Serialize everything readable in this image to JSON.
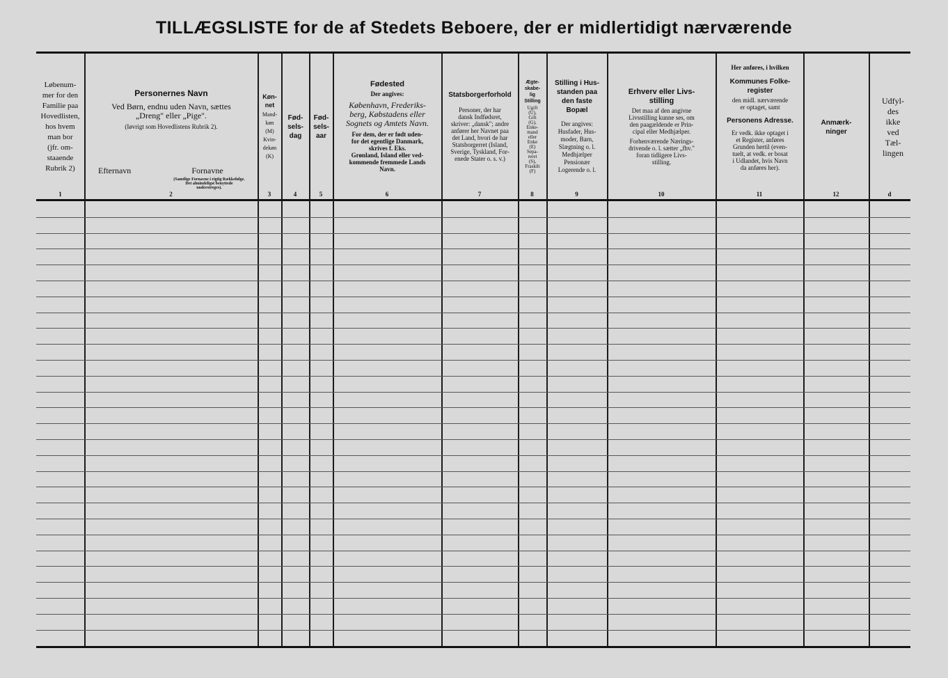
{
  "title": "TILLÆGSLISTE for de af Stedets Beboere, der er midlertidigt nærværende",
  "columns": [
    {
      "num": "1",
      "text": "Løbenum-\nmer for den\nFamilie paa\nHovedlisten,\nhos hvem\nman bor\n(jfr. om-\nstaaende\nRubrik 2)"
    },
    {
      "num": "2",
      "heading": "Personernes Navn",
      "text": "Ved Børn, endnu uden Navn, sættes\n„Dreng\" eller „Pige\".",
      "note": "(Iøvrigt som Hovedlistens Rubrik 2).",
      "sub1": "Efternavn",
      "sub2": "Fornavne",
      "sub2note": "(Samtlige Fornavne i rigtig Rækkefølge. Det almindeligst benyttede understreges)."
    },
    {
      "num": "3",
      "heading": "Køn-\nnet",
      "text": "Mand-\nkøn\n(M)\nKvin-\ndekøn\n(K)"
    },
    {
      "num": "4",
      "heading": "Fød-\nsels-\ndag"
    },
    {
      "num": "5",
      "heading": "Fød-\nsels-\naar"
    },
    {
      "num": "6",
      "heading": "Fødested",
      "text": "Der angives:",
      "text2": "København, Frederiks-\nberg, Købstadens eller\nSognets og Amtets Navn.",
      "text3": "For dem, der er født uden-\nfor det egentlige Danmark,\nskrives f. Eks.\nGrønland, Island eller ved-\nkommende fremmede Lands\nNavn."
    },
    {
      "num": "7",
      "heading": "Statsborgerforhold",
      "text": "Personer, der har\ndansk Indfødsret,\nskriver: „dansk\"; andre\nanfører her Navnet paa\ndet Land, hvori de har\nStatsborgerret (Island,\nSverige, Tyskland, For-\nenede Stater o. s. v.)"
    },
    {
      "num": "8",
      "heading": "Ægte-\nskabe-\nlig\nStilling",
      "text": "Ugift\n(U),\nGift\n(G),\nEnke-\nmand\neller\nEnke\n(E)\nSepa-\nreret\n(S),\nFraskilt\n(F)"
    },
    {
      "num": "9",
      "heading": "Stilling i Hus-\nstanden paa\nden faste\nBopæl",
      "text": "Der angives:\nHusfader, Hus-\nmoder, Barn,\nSlægtning o. l.\nMedhjælper\nPensionær\nLogerende o. l."
    },
    {
      "num": "10",
      "heading": "Erhverv eller Livs-\nstilling",
      "text": "Det maa af den angivne\nLivsstilling kunne ses, om\nden paagældende er Prin-\ncipal eller Medhjælper.",
      "text2": "Forhenværende Nærings-\ndrivende o. l. sætter „fhv.\"\nforan tidligere Livs-\nstilling."
    },
    {
      "num": "11",
      "pre": "Her anføres, i hvilken",
      "heading": "Kommunes Folke-\nregister",
      "text": "den midl. nærværende\ner optaget, samt",
      "heading2": "Personens Adresse.",
      "text2": "Er vedk. ikke optaget i\net Register, anføres\nGrunden hertil (even-\ntuelt, at vedk. er bosat\ni Udlandet, hvis Navn\nda anføres her)."
    },
    {
      "num": "12",
      "heading": "Anmærk-\nninger"
    },
    {
      "num": "d",
      "text": "Udfyl-\ndes\nikke\nved\nTæl-\nlingen"
    }
  ]
}
